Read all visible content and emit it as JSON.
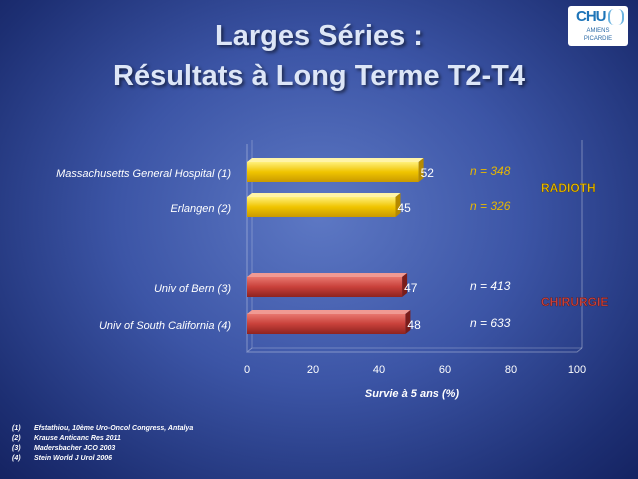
{
  "title": {
    "line1": "Larges Séries :",
    "line2": "Résultats à Long Terme T2-T4"
  },
  "logo": {
    "main": "CHU",
    "line1": "AMIENS",
    "line2": "PICARDIE"
  },
  "colors": {
    "radioth": "#f0c400",
    "chirurgie": "#c8403a",
    "n_radioth": "#e8b800",
    "n_chirurgie": "#ffffff"
  },
  "chart_data": {
    "type": "bar",
    "orientation": "horizontal",
    "categories": [
      "Massachusetts General Hospital (1)",
      "Erlangen (2)",
      "Univ of Bern (3)",
      "Univ of South California (4)"
    ],
    "values": [
      52,
      45,
      47,
      48
    ],
    "groups": [
      "RADIOTH",
      "RADIOTH",
      "CHIRURGIE",
      "CHIRURGIE"
    ],
    "n_labels": [
      "n = 348",
      "n = 326",
      "n = 413",
      "n = 633"
    ],
    "group_labels": [
      "RADIOTH",
      "CHIRURGIE"
    ],
    "xlabel": "Survie à 5 ans (%)",
    "xlim": [
      0,
      100
    ],
    "xticks": [
      0,
      20,
      40,
      60,
      80,
      100
    ]
  },
  "references": [
    {
      "num": "(1)",
      "text": "Efstathiou, 10ème Uro-Oncol Congress, Antalya"
    },
    {
      "num": "(2)",
      "text": "Krause Anticanc Res 2011"
    },
    {
      "num": "(3)",
      "text": "Madersbacher  JCO 2003"
    },
    {
      "num": "(4)",
      "text": "Stein World J Urol 2006"
    }
  ]
}
